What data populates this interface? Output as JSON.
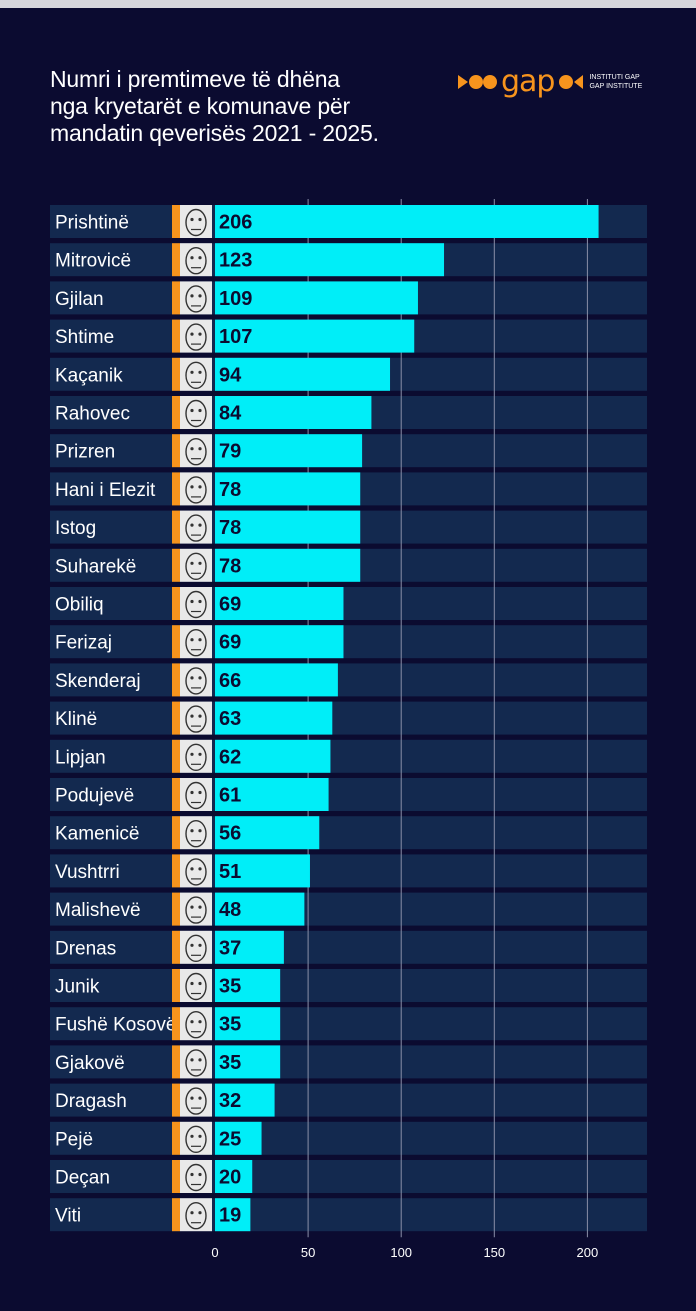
{
  "title_lines": [
    "Numri i premtimeve të dhëna",
    "nga kryetarët e komunave për",
    "mandatin qeverisës 2021 - 2025."
  ],
  "logo": {
    "word": "gap",
    "sub1": "INSTITUTI GAP",
    "sub2": "GAP INSTITUTE",
    "color": "#f7941d"
  },
  "colors": {
    "background": "#0b0b30",
    "bar": "#00eef8",
    "row_band": "#13294f",
    "accent": "#f7941d"
  },
  "chart_data": {
    "type": "bar",
    "orientation": "horizontal",
    "title": "Numri i premtimeve të dhëna nga kryetarët e komunave për mandatin qeverisës 2021 - 2025.",
    "categories": [
      "Prishtinë",
      "Mitrovicë",
      "Gjilan",
      "Shtime",
      "Kaçanik",
      "Rahovec",
      "Prizren",
      "Hani i Elezit",
      "Istog",
      "Suharekë",
      "Obiliq",
      "Ferizaj",
      "Skenderaj",
      "Klinë",
      "Lipjan",
      "Podujevë",
      "Kamenicë",
      "Vushtrri",
      "Malishevë",
      "Drenas",
      "Junik",
      "Fushë Kosovë",
      "Gjakovë",
      "Dragash",
      "Pejë",
      "Deçan",
      "Viti"
    ],
    "values": [
      206,
      123,
      109,
      107,
      94,
      84,
      79,
      78,
      78,
      78,
      69,
      69,
      66,
      63,
      62,
      61,
      56,
      51,
      48,
      37,
      35,
      35,
      35,
      32,
      25,
      20,
      19
    ],
    "xticks": [
      0,
      50,
      100,
      150,
      200
    ],
    "xlim": [
      0,
      232
    ],
    "grid": true,
    "legend": "none"
  }
}
